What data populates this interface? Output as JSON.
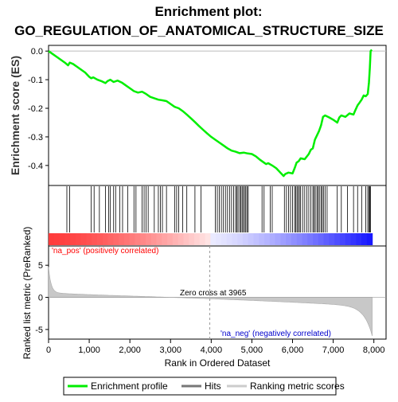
{
  "title_line1": "Enrichment plot:",
  "title_line2": "GO_REGULATION_OF_ANATOMICAL_STRUCTURE_SIZE",
  "chart_data": {
    "type": "line",
    "es_panel": {
      "ylabel": "Enrichment score (ES)",
      "ylim": [
        -0.47,
        0.02
      ],
      "yticks": [
        0.0,
        -0.1,
        -0.2,
        -0.3,
        -0.4
      ],
      "ytick_labels": [
        "0.0",
        "-0.1",
        "-0.2",
        "-0.3",
        "-0.4"
      ],
      "color": "#00ee00",
      "points": [
        [
          0,
          0.0
        ],
        [
          100,
          -0.01
        ],
        [
          200,
          -0.02
        ],
        [
          300,
          -0.03
        ],
        [
          400,
          -0.04
        ],
        [
          480,
          -0.05
        ],
        [
          520,
          -0.04
        ],
        [
          600,
          -0.045
        ],
        [
          700,
          -0.055
        ],
        [
          800,
          -0.065
        ],
        [
          900,
          -0.075
        ],
        [
          1000,
          -0.09
        ],
        [
          1050,
          -0.095
        ],
        [
          1100,
          -0.092
        ],
        [
          1200,
          -0.1
        ],
        [
          1300,
          -0.105
        ],
        [
          1400,
          -0.112
        ],
        [
          1450,
          -0.105
        ],
        [
          1520,
          -0.1
        ],
        [
          1600,
          -0.108
        ],
        [
          1700,
          -0.103
        ],
        [
          1800,
          -0.11
        ],
        [
          1900,
          -0.12
        ],
        [
          2000,
          -0.13
        ],
        [
          2100,
          -0.14
        ],
        [
          2200,
          -0.145
        ],
        [
          2300,
          -0.142
        ],
        [
          2400,
          -0.15
        ],
        [
          2500,
          -0.16
        ],
        [
          2600,
          -0.165
        ],
        [
          2700,
          -0.17
        ],
        [
          2800,
          -0.172
        ],
        [
          2900,
          -0.175
        ],
        [
          3000,
          -0.185
        ],
        [
          3100,
          -0.195
        ],
        [
          3200,
          -0.2
        ],
        [
          3300,
          -0.21
        ],
        [
          3400,
          -0.222
        ],
        [
          3500,
          -0.235
        ],
        [
          3600,
          -0.248
        ],
        [
          3700,
          -0.262
        ],
        [
          3800,
          -0.275
        ],
        [
          3900,
          -0.288
        ],
        [
          4000,
          -0.3
        ],
        [
          4100,
          -0.31
        ],
        [
          4200,
          -0.32
        ],
        [
          4300,
          -0.33
        ],
        [
          4400,
          -0.34
        ],
        [
          4500,
          -0.348
        ],
        [
          4600,
          -0.352
        ],
        [
          4700,
          -0.357
        ],
        [
          4800,
          -0.355
        ],
        [
          4900,
          -0.358
        ],
        [
          5000,
          -0.36
        ],
        [
          5100,
          -0.368
        ],
        [
          5200,
          -0.38
        ],
        [
          5300,
          -0.39
        ],
        [
          5350,
          -0.395
        ],
        [
          5400,
          -0.392
        ],
        [
          5500,
          -0.4
        ],
        [
          5600,
          -0.41
        ],
        [
          5700,
          -0.425
        ],
        [
          5780,
          -0.437
        ],
        [
          5820,
          -0.43
        ],
        [
          5900,
          -0.425
        ],
        [
          6000,
          -0.428
        ],
        [
          6050,
          -0.41
        ],
        [
          6100,
          -0.39
        ],
        [
          6150,
          -0.385
        ],
        [
          6200,
          -0.375
        ],
        [
          6300,
          -0.378
        ],
        [
          6400,
          -0.36
        ],
        [
          6450,
          -0.345
        ],
        [
          6500,
          -0.34
        ],
        [
          6550,
          -0.31
        ],
        [
          6600,
          -0.295
        ],
        [
          6650,
          -0.28
        ],
        [
          6700,
          -0.26
        ],
        [
          6750,
          -0.23
        ],
        [
          6800,
          -0.225
        ],
        [
          6900,
          -0.232
        ],
        [
          7000,
          -0.24
        ],
        [
          7100,
          -0.25
        ],
        [
          7150,
          -0.232
        ],
        [
          7200,
          -0.225
        ],
        [
          7300,
          -0.23
        ],
        [
          7400,
          -0.218
        ],
        [
          7500,
          -0.222
        ],
        [
          7550,
          -0.205
        ],
        [
          7600,
          -0.19
        ],
        [
          7650,
          -0.18
        ],
        [
          7700,
          -0.17
        ],
        [
          7750,
          -0.155
        ],
        [
          7800,
          -0.158
        ],
        [
          7850,
          -0.15
        ],
        [
          7880,
          -0.11
        ],
        [
          7900,
          -0.06
        ],
        [
          7920,
          0.0
        ],
        [
          7950,
          0.005
        ]
      ]
    },
    "hits": {
      "positions": [
        450,
        520,
        1050,
        1120,
        1250,
        1400,
        1480,
        1520,
        1600,
        1650,
        1750,
        1820,
        1950,
        2100,
        2150,
        2300,
        2350,
        2400,
        2450,
        2600,
        2700,
        2750,
        2800,
        2900,
        3100,
        3150,
        3200,
        3300,
        3400,
        3600,
        3750,
        4100,
        4150,
        4200,
        4250,
        4300,
        4350,
        4400,
        4450,
        4500,
        4550,
        4600,
        4630,
        4660,
        4700,
        4730,
        4760,
        4790,
        4820,
        4850,
        4880,
        4910,
        5250,
        5300,
        5450,
        5500,
        5800,
        5850,
        5900,
        5950,
        6000,
        6050,
        6080,
        6110,
        6140,
        6170,
        6200,
        6250,
        6300,
        6350,
        6400,
        6450,
        6500,
        6530,
        6560,
        6600,
        6630,
        6660,
        6700,
        6730,
        6760,
        6800,
        6850,
        7100,
        7200,
        7350,
        7500,
        7600,
        7700,
        7800,
        7850,
        7880,
        7900,
        7920
      ]
    },
    "heatbar": {
      "label_pos": "'na_pos' (positively correlated)",
      "label_neg": "'na_neg' (negatively correlated)",
      "pos_color": "#ff0000",
      "neg_color": "#0000ff"
    },
    "rank_panel": {
      "ylabel": "Ranked list metric (PreRanked)",
      "ylim": [
        -6.5,
        8
      ],
      "yticks": [
        5,
        0,
        -5
      ],
      "ytick_labels": [
        "5",
        "0",
        "-5"
      ],
      "zero_cross_label": "Zero cross at 3965",
      "zero_cross": 3965
    },
    "xlabel": "Rank in Ordered Dataset",
    "xlim": [
      0,
      8300
    ],
    "xticks": [
      0,
      1000,
      2000,
      3000,
      4000,
      5000,
      6000,
      7000,
      8000
    ],
    "xtick_labels": [
      "0",
      "1,000",
      "2,000",
      "3,000",
      "4,000",
      "5,000",
      "6,000",
      "7,000",
      "8,000"
    ],
    "n_genes": 7960,
    "legend": {
      "items": [
        {
          "label": "Enrichment profile",
          "color": "#00ee00"
        },
        {
          "label": "Hits",
          "color": "#777777"
        },
        {
          "label": "Ranking metric scores",
          "color": "#cccccc"
        }
      ]
    }
  }
}
